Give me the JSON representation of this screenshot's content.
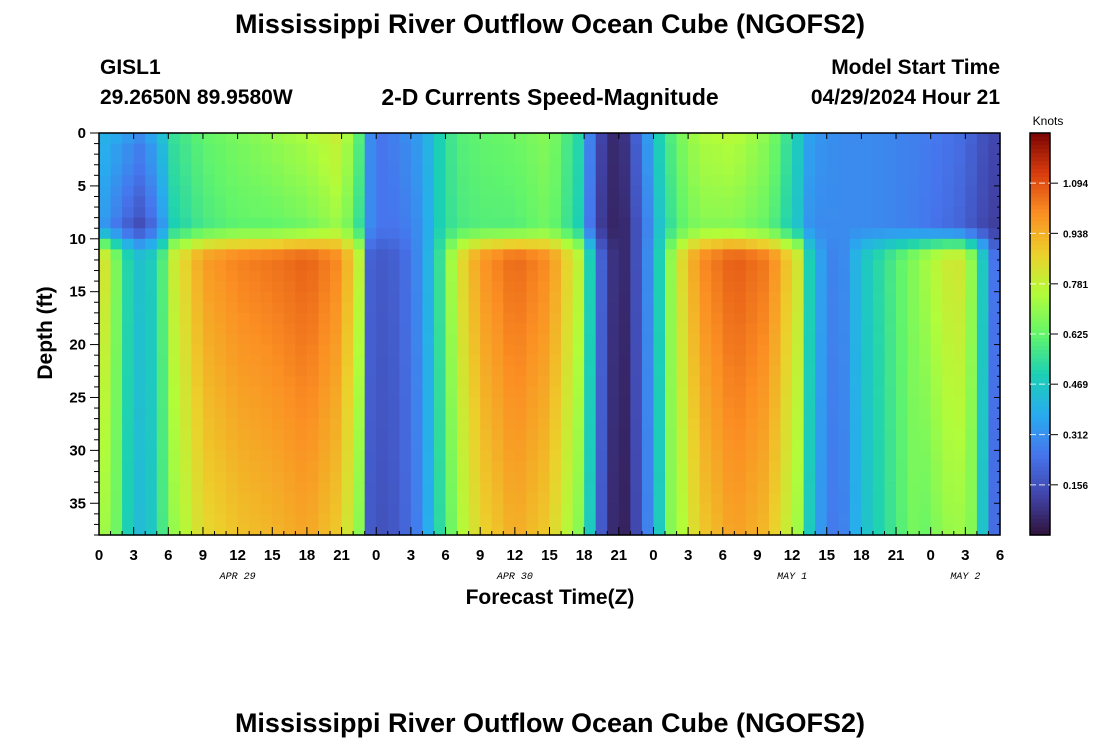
{
  "header": {
    "title": "Mississippi River Outflow Ocean Cube (NGOFS2)",
    "station_id": "GISL1",
    "station_coords": "29.2650N  89.9580W",
    "subtitle": "2-D Currents Speed-Magnitude",
    "model_start_label": "Model Start Time",
    "model_start_value": "04/29/2024 Hour 21"
  },
  "footer": {
    "title": "Mississippi River Outflow Ocean Cube (NGOFS2)"
  },
  "chart_data": {
    "type": "heatmap",
    "title": "2-D Currents Speed-Magnitude",
    "xlabel": "Forecast Time(Z)",
    "ylabel": "Depth (ft)",
    "colorbar_label": "Knots",
    "x_range_hours": [
      0,
      78
    ],
    "y_range_ft": [
      0,
      38
    ],
    "x_tick_labels": [
      "0",
      "3",
      "6",
      "9",
      "12",
      "15",
      "18",
      "21",
      "0",
      "3",
      "6",
      "9",
      "12",
      "15",
      "18",
      "21",
      "0",
      "3",
      "6",
      "9",
      "12",
      "15",
      "18",
      "21",
      "0",
      "3",
      "6"
    ],
    "date_labels": [
      {
        "label": "APR 29",
        "hour": 12
      },
      {
        "label": "APR 30",
        "hour": 36
      },
      {
        "label": "MAY 1",
        "hour": 60
      },
      {
        "label": "MAY 2",
        "hour": 75
      }
    ],
    "y_tick_labels": [
      "0",
      "5",
      "10",
      "15",
      "20",
      "25",
      "30",
      "35"
    ],
    "y_tick_values": [
      0,
      5,
      10,
      15,
      20,
      25,
      30,
      35
    ],
    "colorbar_range": [
      0,
      1.25
    ],
    "colorbar_ticks": [
      "1.094",
      "0.938",
      "0.781",
      "0.625",
      "0.469",
      "0.312",
      "0.156"
    ],
    "colorbar_tick_values": [
      1.094,
      0.938,
      0.781,
      0.625,
      0.469,
      0.312,
      0.156
    ],
    "deep_layer_profile": {
      "hours": [
        0,
        1,
        2,
        3.5,
        5,
        6.5,
        9,
        12,
        15,
        18,
        21,
        22.5,
        23.5,
        24.5,
        26,
        28,
        29.5,
        31,
        33,
        36,
        39,
        41.5,
        42.5,
        43.5,
        44.5,
        45.5,
        47,
        48.5,
        50,
        52,
        55,
        58,
        60.5,
        61.5,
        62.5,
        64,
        66,
        70,
        72,
        74,
        75,
        76,
        77,
        78
      ],
      "speed_knots": [
        0.85,
        0.78,
        0.55,
        0.45,
        0.5,
        0.8,
        0.97,
        1.02,
        1.04,
        1.07,
        1.0,
        0.78,
        0.2,
        0.18,
        0.2,
        0.32,
        0.55,
        0.82,
        0.98,
        1.06,
        1.0,
        0.78,
        0.5,
        0.2,
        0.08,
        0.06,
        0.2,
        0.5,
        0.8,
        1.0,
        1.08,
        1.03,
        0.82,
        0.5,
        0.35,
        0.25,
        0.45,
        0.65,
        0.75,
        0.82,
        0.8,
        0.6,
        0.35,
        0.15
      ]
    },
    "surface_layer_profile": {
      "hours": [
        0,
        1,
        2,
        3.5,
        5,
        6.5,
        9,
        12,
        15,
        18,
        21,
        22.5,
        23.5,
        24.5,
        26,
        28,
        29.5,
        31,
        33,
        36,
        39,
        41.5,
        42.5,
        43.5,
        44.5,
        45.5,
        47,
        48.5,
        50,
        52,
        55,
        58,
        60.5,
        61.5,
        62.5,
        64,
        66,
        70,
        72,
        74,
        75,
        76,
        77,
        78
      ],
      "speed_knots": [
        0.35,
        0.3,
        0.22,
        0.15,
        0.25,
        0.5,
        0.58,
        0.62,
        0.62,
        0.65,
        0.72,
        0.55,
        0.3,
        0.25,
        0.25,
        0.32,
        0.5,
        0.58,
        0.6,
        0.6,
        0.65,
        0.5,
        0.25,
        0.1,
        0.05,
        0.06,
        0.2,
        0.45,
        0.6,
        0.68,
        0.68,
        0.62,
        0.45,
        0.32,
        0.3,
        0.3,
        0.3,
        0.28,
        0.25,
        0.22,
        0.2,
        0.15,
        0.12,
        0.1
      ]
    },
    "top_layer_profile": {
      "hours": [
        0,
        1,
        2,
        3.5,
        5,
        6.5,
        9,
        12,
        15,
        18,
        21,
        22.5,
        23.5,
        24.5,
        26,
        28,
        29.5,
        31,
        33,
        36,
        39,
        41.5,
        42.5,
        43.5,
        44.5,
        45.5,
        47,
        48.5,
        50,
        52,
        55,
        58,
        60.5,
        61.5,
        62.5,
        64,
        66,
        70,
        72,
        74,
        75,
        76,
        77,
        78
      ],
      "speed_knots": [
        0.4,
        0.38,
        0.35,
        0.3,
        0.38,
        0.55,
        0.62,
        0.66,
        0.7,
        0.74,
        0.8,
        0.6,
        0.3,
        0.25,
        0.28,
        0.35,
        0.5,
        0.6,
        0.62,
        0.64,
        0.68,
        0.52,
        0.28,
        0.12,
        0.06,
        0.08,
        0.25,
        0.5,
        0.64,
        0.74,
        0.76,
        0.68,
        0.48,
        0.35,
        0.32,
        0.3,
        0.3,
        0.28,
        0.26,
        0.24,
        0.22,
        0.18,
        0.14,
        0.12
      ]
    }
  }
}
